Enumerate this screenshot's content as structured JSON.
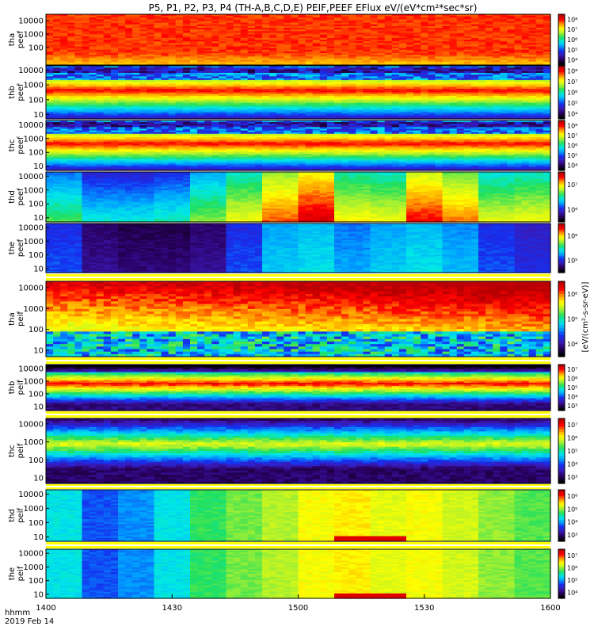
{
  "chart_data": {
    "type": "heatmap",
    "title": "P5, P1, P2, P3, P4 (TH-A,B,C,D,E) PEIF,PEEF EFlux eV/(eV*cm²*sec*sr)",
    "x_axis": {
      "label_line1": "hhmm",
      "label_line2": "2019 Feb 14",
      "range": [
        "1400",
        "1600"
      ],
      "ticks": [
        "1400",
        "1430",
        "1500",
        "1530",
        "1600"
      ]
    },
    "colorbar_label": "[eV/(cm²-s-sr-eV)]",
    "colormap": [
      "#000000",
      "#2a0060",
      "#3a1ab8",
      "#1530f0",
      "#00a0ff",
      "#00e8e8",
      "#20e060",
      "#a8f030",
      "#ffff00",
      "#ff9800",
      "#ff0000",
      "#b80000"
    ],
    "panels": [
      {
        "probe": "tha",
        "label": "tha\npeef",
        "species": "electron",
        "ylim": [
          5,
          30000
        ],
        "yticks": [
          "100",
          "1000",
          "10000"
        ],
        "cbar_ticks": [
          "10⁴",
          "10⁵",
          "10⁶",
          "10⁷",
          "10⁸"
        ],
        "pattern": "flat_high",
        "level": 0.95
      },
      {
        "probe": "thb",
        "label": "thb\npeef",
        "species": "electron",
        "ylim": [
          5,
          20000
        ],
        "yticks": [
          "10",
          "100",
          "1000",
          "10000"
        ],
        "cbar_ticks": [
          "10⁴",
          "10⁵",
          "10⁶",
          "10⁷",
          "10⁸"
        ],
        "pattern": "banded",
        "level": 0.6
      },
      {
        "probe": "thc",
        "label": "thc\npeef",
        "species": "electron",
        "ylim": [
          5,
          20000
        ],
        "yticks": [
          "10",
          "100",
          "1000",
          "10000"
        ],
        "cbar_ticks": [
          "10⁴",
          "10⁵",
          "10⁶",
          "10⁷",
          "10⁸"
        ],
        "pattern": "banded",
        "level": 0.55
      },
      {
        "probe": "thd",
        "label": "thd\npeef",
        "species": "electron",
        "ylim": [
          5,
          20000
        ],
        "yticks": [
          "10",
          "100",
          "1000",
          "10000"
        ],
        "cbar_ticks": [
          "10⁶",
          "10⁷"
        ],
        "pattern": "blocks",
        "level": 0.7
      },
      {
        "probe": "the",
        "label": "the\npeef",
        "species": "electron",
        "ylim": [
          5,
          20000
        ],
        "yticks": [
          "10",
          "100",
          "1000",
          "10000"
        ],
        "cbar_ticks": [
          "10⁵",
          "10⁶"
        ],
        "pattern": "blocks_low",
        "level": 0.25
      },
      {
        "probe": "tha",
        "label": "tha\npeif",
        "species": "ion",
        "ylim": [
          5,
          20000
        ],
        "yticks": [
          "10",
          "100",
          "1000",
          "10000"
        ],
        "cbar_ticks": [
          "10⁴",
          "10⁵",
          "10⁶"
        ],
        "pattern": "ion_rise",
        "level": 0.7
      },
      {
        "probe": "thb",
        "label": "thb\npeif",
        "species": "ion",
        "ylim": [
          5,
          20000
        ],
        "yticks": [
          "10",
          "100",
          "1000",
          "10000"
        ],
        "cbar_ticks": [
          "10³",
          "10⁴",
          "10⁵",
          "10⁶",
          "10⁷"
        ],
        "pattern": "ion_mid",
        "level": 0.5
      },
      {
        "probe": "thc",
        "label": "thc\npeif",
        "species": "ion",
        "ylim": [
          5,
          20000
        ],
        "yticks": [
          "10",
          "100",
          "1000",
          "10000"
        ],
        "cbar_ticks": [
          "10³",
          "10⁴",
          "10⁵",
          "10⁶",
          "10⁷"
        ],
        "pattern": "ion_low",
        "level": 0.4
      },
      {
        "probe": "thd",
        "label": "thd\npeif",
        "species": "ion",
        "ylim": [
          5,
          20000
        ],
        "yticks": [
          "10",
          "100",
          "1000",
          "10000"
        ],
        "cbar_ticks": [
          "10³",
          "10⁴",
          "10⁵",
          "10⁶"
        ],
        "pattern": "ion_blocks",
        "level": 0.65
      },
      {
        "probe": "the",
        "label": "the\npeif",
        "species": "ion",
        "ylim": [
          5,
          20000
        ],
        "yticks": [
          "10",
          "100",
          "1000",
          "10000"
        ],
        "cbar_ticks": [
          "10⁴",
          "10⁵",
          "10⁶",
          "10⁷"
        ],
        "pattern": "ion_blocks",
        "level": 0.7
      }
    ]
  }
}
